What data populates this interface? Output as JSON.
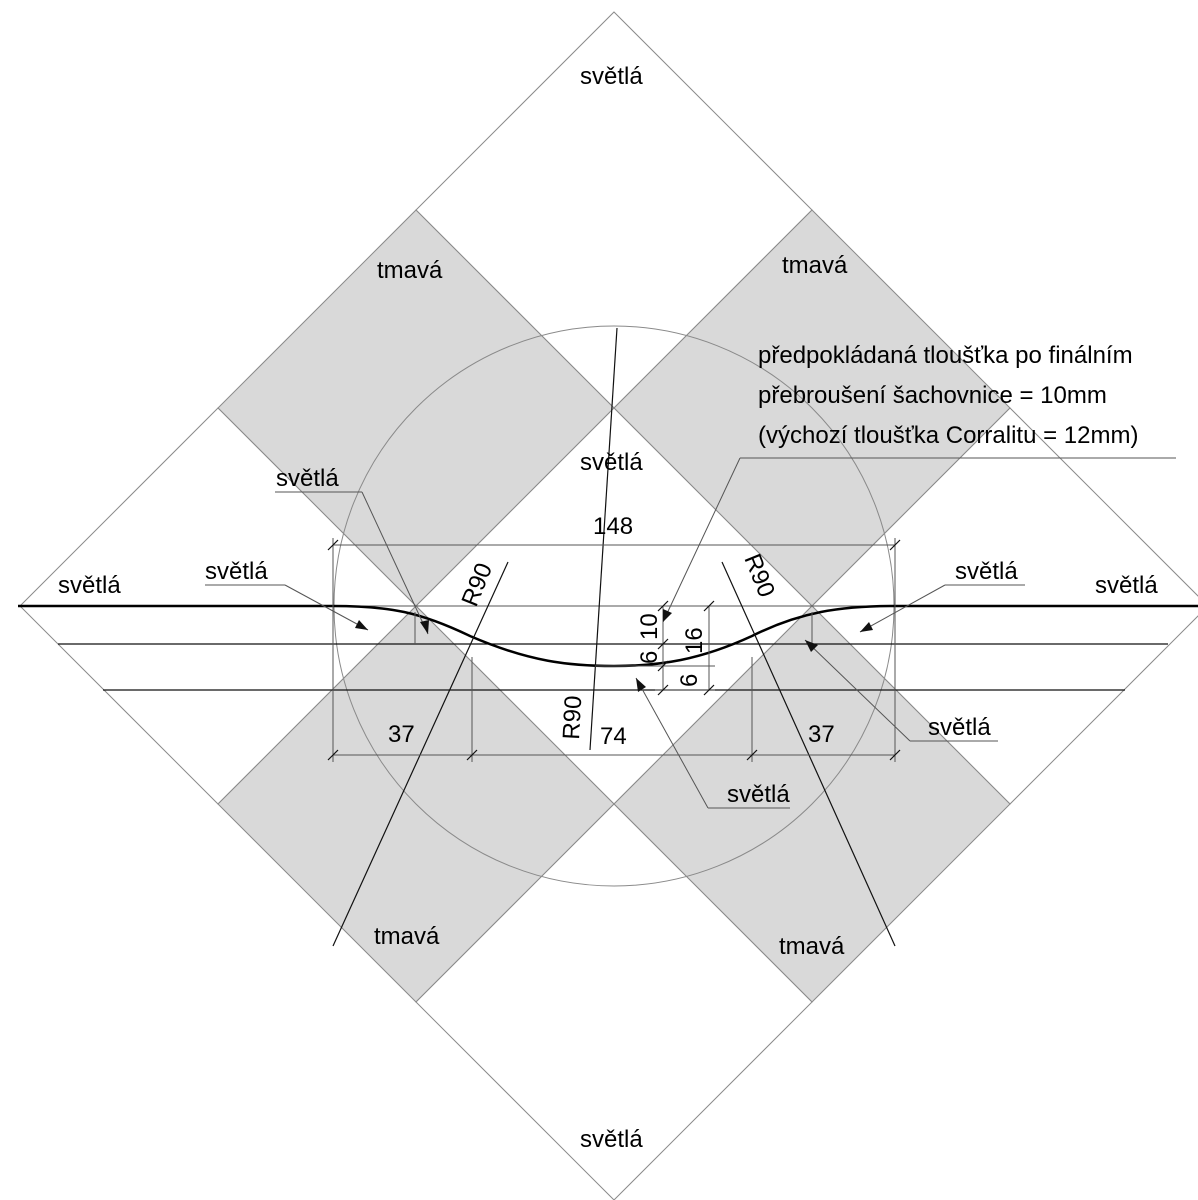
{
  "labels": {
    "light": "světlá",
    "dark": "tmavá"
  },
  "dimensions": {
    "total_width": "148",
    "left_segment": "37",
    "middle_segment": "74",
    "right_segment": "37",
    "radius": "R90",
    "dim_10": "10",
    "dim_6_upper": "6",
    "dim_16": "16",
    "dim_6_lower": "6"
  },
  "note": {
    "line1": "předpokládaná tloušťka po finálním",
    "line2": "přebroušení šachovnice = 10mm",
    "line3": "(výchozí tloušťka Corralitu = 12mm)"
  }
}
